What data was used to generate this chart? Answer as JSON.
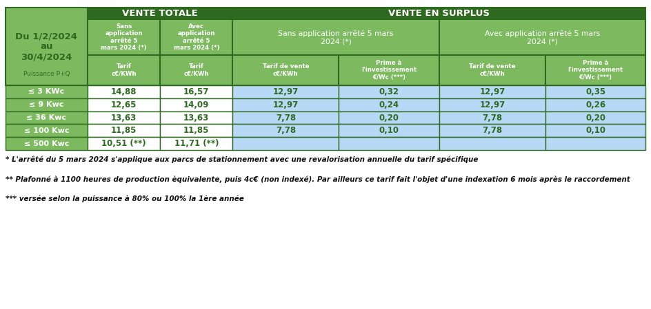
{
  "title_date": "Du 1/2/2024\nau\n30/4/2024",
  "header1_title": "VENTE TOTALE",
  "header2_title": "VENTE EN SURPLUS",
  "col1_subheader": "Sans\napplication\narrêté 5\nmars 2024 (*)",
  "col2_subheader": "Avec\napplication\narrêté 5\nmars 2024 (*)",
  "col34_subheader": "Sans application arrêté 5 mars\n2024 (*)",
  "col56_subheader": "Avec application arrêté 5 mars\n2024 (*)",
  "sub_col1": "Tarif\nc€/KWh",
  "sub_col2": "Tarif\nc€/KWh",
  "sub_col3": "Tarif de vente\nc€/KWh",
  "sub_col4": "Prime à\nl'investissement\n€/Wc (***)",
  "sub_col5": "Tarif de vente\nc€/KWh",
  "sub_col6": "Prime à\nl'investissement\n€/Wc (***)",
  "puissance_label": "Puissance P+Q",
  "rows": [
    {
      "label": "≤ 3 KWc",
      "v1": "14,88",
      "v2": "16,57",
      "v3": "12,97",
      "v4": "0,32",
      "v5": "12,97",
      "v6": "0,35"
    },
    {
      "label": "≤ 9 Kwc",
      "v1": "12,65",
      "v2": "14,09",
      "v3": "12,97",
      "v4": "0,24",
      "v5": "12,97",
      "v6": "0,26"
    },
    {
      "label": "≤ 36 Kwc",
      "v1": "13,63",
      "v2": "13,63",
      "v3": "7,78",
      "v4": "0,20",
      "v5": "7,78",
      "v6": "0,20"
    },
    {
      "label": "≤ 100 Kwc",
      "v1": "11,85",
      "v2": "11,85",
      "v3": "7,78",
      "v4": "0,10",
      "v5": "7,78",
      "v6": "0,10"
    },
    {
      "label": "≤ 500 Kwc",
      "v1": "10,51 (**)",
      "v2": "11,71 (**)",
      "v3": "",
      "v4": "",
      "v5": "",
      "v6": ""
    }
  ],
  "footnotes": [
    "* L'arrêté du 5 mars 2024 s'applique aux parcs de stationnement avec une revalorisation annuelle du tarif spécifique",
    "** Plafonné à 1100 heures de production èquivalente, puis 4c€ (non indexé). Par ailleurs ce tarif fait l'objet d'une indexation 6 mois après le raccordement",
    "*** versée selon la puissance à 80% ou 100% la 1ère année"
  ],
  "color_dark_green": "#2d6a1f",
  "color_light_green": "#7dba5f",
  "color_light_blue": "#b8d9f5",
  "color_white": "#ffffff",
  "color_border": "#2d6a1f",
  "color_date_text": "#2d6a1f",
  "color_puissance_text": "#2d6a1f"
}
